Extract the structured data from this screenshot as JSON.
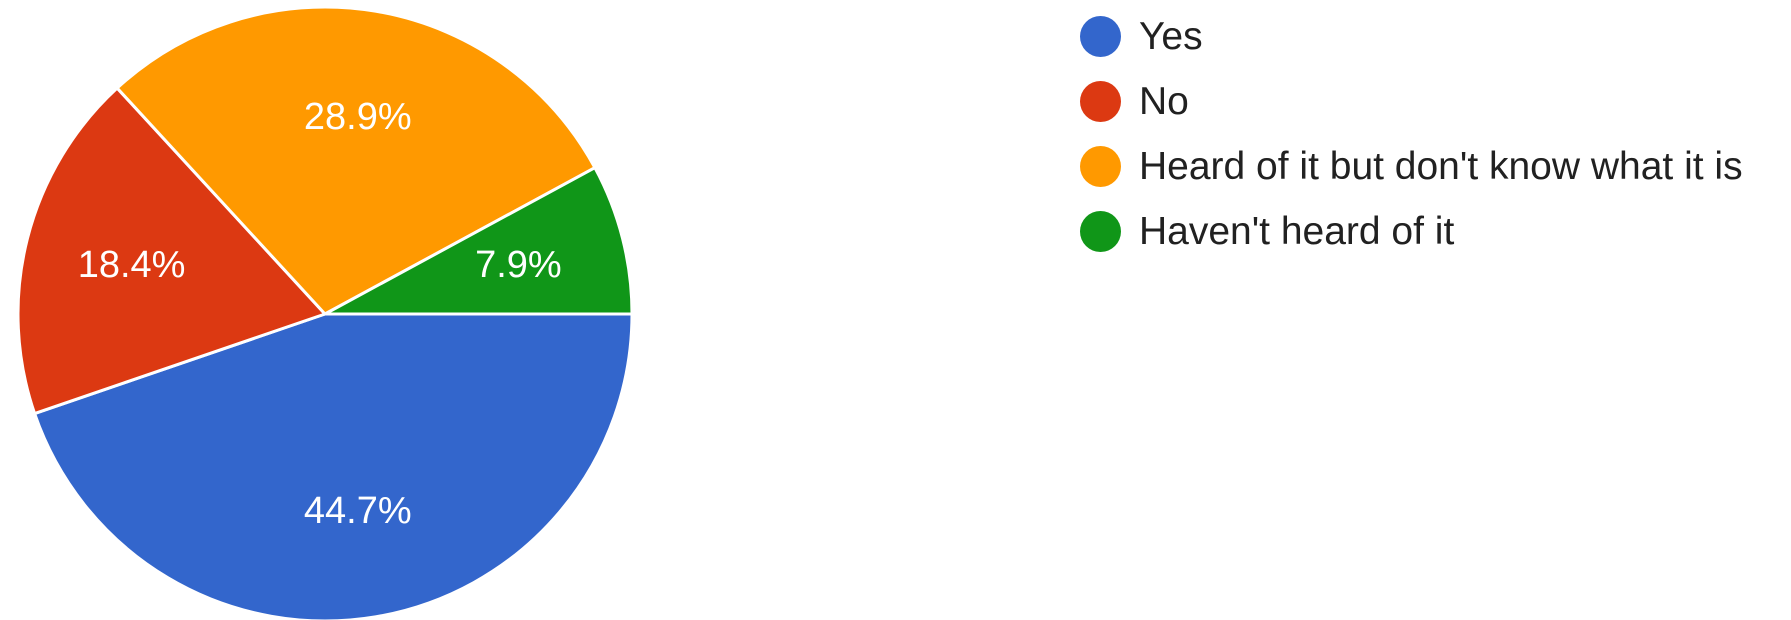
{
  "chart_data": {
    "type": "pie",
    "title": "",
    "legend_position": "right",
    "slices": [
      {
        "label": "Yes",
        "value": 44.7,
        "value_label": "44.7%",
        "color": "#3366cc"
      },
      {
        "label": "No",
        "value": 18.4,
        "value_label": "18.4%",
        "color": "#dc3912"
      },
      {
        "label": "Heard of it but don't know what it is",
        "value": 28.9,
        "value_label": "28.9%",
        "color": "#ff9900"
      },
      {
        "label": "Haven't heard of it",
        "value": 7.9,
        "value_label": "7.9%",
        "color": "#109618"
      }
    ]
  }
}
